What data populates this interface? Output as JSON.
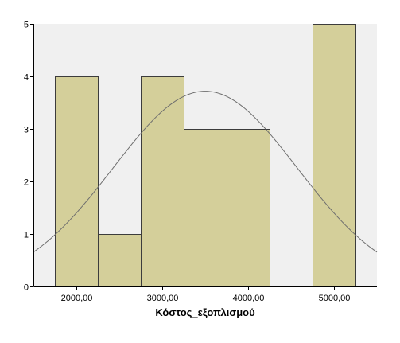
{
  "chart_data": {
    "type": "bar",
    "subtype": "histogram-with-normal-curve",
    "title": "",
    "xlabel": "Κόστος_εξοπλισμού",
    "ylabel": "",
    "xlim": [
      1500,
      5500
    ],
    "ylim": [
      0,
      5
    ],
    "bin_width": 500,
    "bins": [
      {
        "start": 1750,
        "end": 2250,
        "count": 4
      },
      {
        "start": 2250,
        "end": 2750,
        "count": 1
      },
      {
        "start": 2750,
        "end": 3250,
        "count": 4
      },
      {
        "start": 3250,
        "end": 3750,
        "count": 3
      },
      {
        "start": 3750,
        "end": 4250,
        "count": 3
      },
      {
        "start": 4250,
        "end": 4750,
        "count": 0
      },
      {
        "start": 4750,
        "end": 5250,
        "count": 5
      }
    ],
    "x_ticks": [
      {
        "value": 2000,
        "label": "2000,00"
      },
      {
        "value": 3000,
        "label": "3000,00"
      },
      {
        "value": 4000,
        "label": "4000,00"
      },
      {
        "value": 5000,
        "label": "5000,00"
      }
    ],
    "y_ticks": [
      "0",
      "1",
      "2",
      "3",
      "4",
      "5"
    ],
    "normal_curve": {
      "mean": 3500,
      "sd": 1073,
      "n": 20
    },
    "grid": false,
    "legend": "none",
    "colors": {
      "bar_fill": "#d4cf9a",
      "bar_stroke": "#3c3c3c",
      "plot_background": "#f0f0f0",
      "curve": "#6e6e6e",
      "axis": "#000000"
    }
  }
}
